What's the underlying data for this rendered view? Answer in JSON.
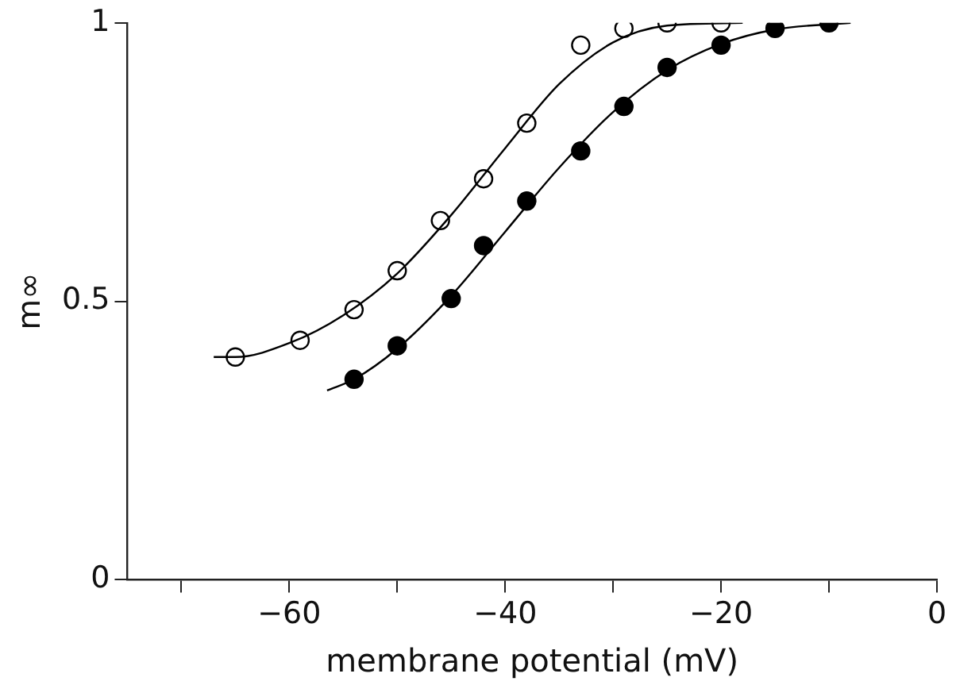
{
  "chart_data": {
    "type": "scatter",
    "xlabel": "membrane potential (mV)",
    "ylabel": "m∞",
    "xlim": [
      -75,
      0
    ],
    "xticks": [
      {
        "value": -70,
        "label": null
      },
      -60,
      {
        "value": -50,
        "label": null
      },
      -40,
      {
        "value": -30,
        "label": null
      },
      -20,
      {
        "value": -10,
        "label": null
      },
      0
    ],
    "ylim": [
      0,
      1
    ],
    "yticks": [
      0,
      0.5,
      1
    ],
    "grid": false,
    "legend": false,
    "series": [
      {
        "type": "line",
        "marker": "none",
        "color": "#000000",
        "x": [
          -67,
          -65,
          -60,
          -55,
          -50,
          -45,
          -40,
          -35,
          -30,
          -25,
          -18
        ],
        "values": [
          0.4,
          0.4,
          0.425,
          0.475,
          0.55,
          0.655,
          0.775,
          0.89,
          0.965,
          0.995,
          1.0
        ]
      },
      {
        "type": "line",
        "marker": "none",
        "color": "#000000",
        "x": [
          -56.5,
          -54,
          -50,
          -45,
          -40,
          -35,
          -30,
          -25,
          -20,
          -15,
          -8
        ],
        "values": [
          0.34,
          0.36,
          0.415,
          0.51,
          0.625,
          0.74,
          0.84,
          0.915,
          0.962,
          0.988,
          1.0
        ]
      },
      {
        "marker": "circle",
        "color": "#ffffff",
        "x": [
          -65,
          -59,
          -54,
          -50,
          -46,
          -42,
          -38,
          -33,
          -29,
          -25,
          -20
        ],
        "values": [
          0.4,
          0.43,
          0.485,
          0.555,
          0.645,
          0.72,
          0.82,
          0.96,
          0.99,
          1.0,
          1.0
        ]
      },
      {
        "marker": "circle",
        "color": "#000000",
        "x": [
          -54,
          -50,
          -45,
          -42,
          -38,
          -33,
          -29,
          -25,
          -20,
          -15,
          -10
        ],
        "values": [
          0.36,
          0.42,
          0.505,
          0.6,
          0.68,
          0.77,
          0.85,
          0.92,
          0.96,
          0.99,
          1.0
        ]
      }
    ]
  }
}
